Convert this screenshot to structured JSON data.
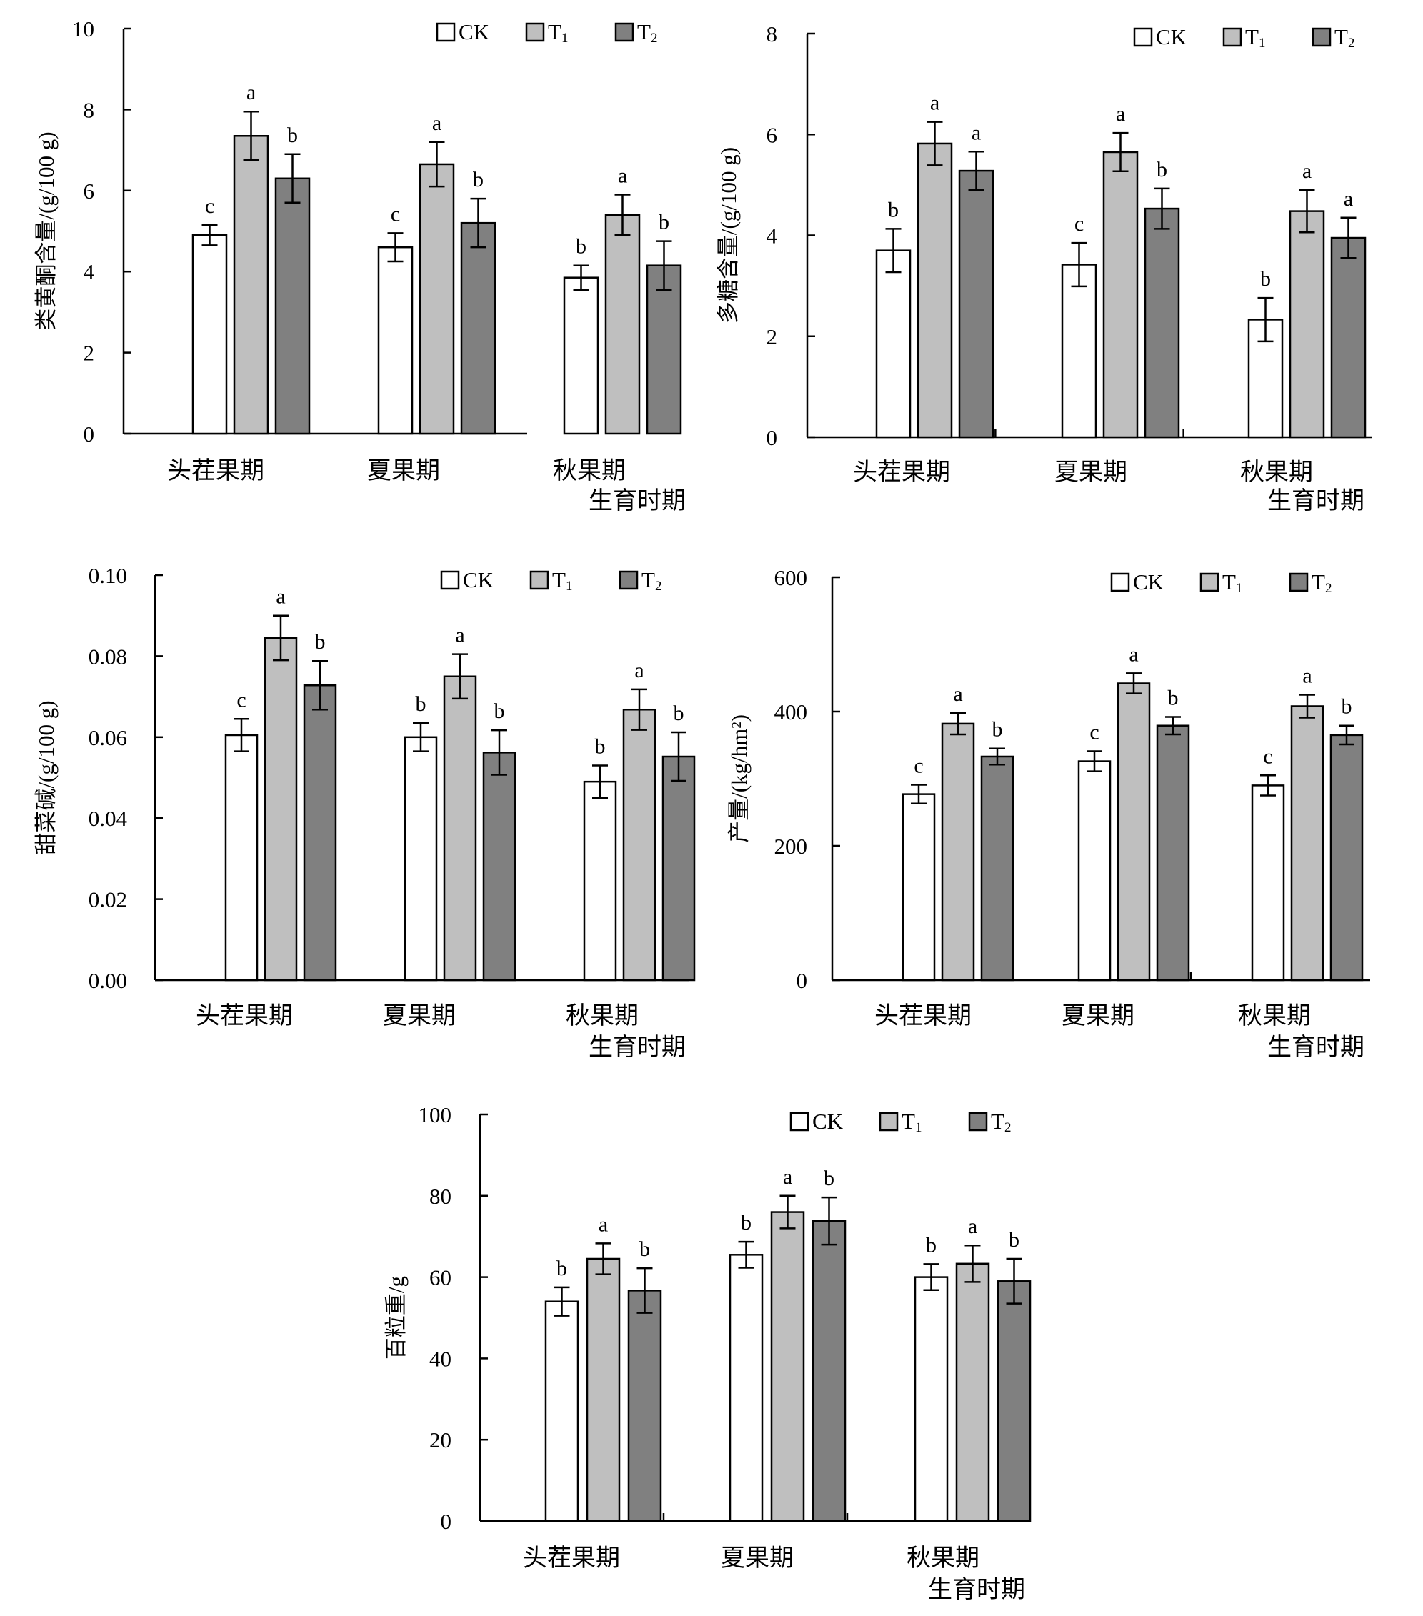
{
  "legend": [
    {
      "key": "CK",
      "label": "CK",
      "sub": "",
      "color": "#ffffff"
    },
    {
      "key": "T1",
      "label": "T",
      "sub": "1",
      "color": "#bfbfbf"
    },
    {
      "key": "T2",
      "label": "T",
      "sub": "2",
      "color": "#808080"
    }
  ],
  "chart_data": [
    {
      "type": "bar",
      "title": "",
      "ylabel": "类黄酮含量/(g/100 g)",
      "xlabel": "生育时期",
      "ylim": [
        0,
        10
      ],
      "yticks": [
        "0",
        "2",
        "4",
        "6",
        "8",
        "10"
      ],
      "categories": [
        "头茬果期",
        "夏果期",
        "秋果期"
      ],
      "legend_position": "top-right",
      "series": [
        {
          "name": "CK",
          "values": [
            4.9,
            4.6,
            3.85
          ],
          "errors": [
            0.25,
            0.35,
            0.3
          ],
          "letters": [
            "c",
            "c",
            "b"
          ]
        },
        {
          "name": "T1",
          "values": [
            7.35,
            6.65,
            5.4
          ],
          "errors": [
            0.6,
            0.55,
            0.5
          ],
          "letters": [
            "a",
            "a",
            "a"
          ]
        },
        {
          "name": "T2",
          "values": [
            6.3,
            5.2,
            4.15
          ],
          "errors": [
            0.6,
            0.6,
            0.6
          ],
          "letters": [
            "b",
            "b",
            "b"
          ]
        }
      ]
    },
    {
      "type": "bar",
      "title": "",
      "ylabel": "多糖含量/(g/100 g)",
      "xlabel": "生育时期",
      "ylim": [
        0,
        8
      ],
      "yticks": [
        "0",
        "2",
        "4",
        "6",
        "8"
      ],
      "categories": [
        "头茬果期",
        "夏果期",
        "秋果期"
      ],
      "legend_position": "top-right",
      "series": [
        {
          "name": "CK",
          "values": [
            3.7,
            3.42,
            2.33
          ],
          "errors": [
            0.43,
            0.43,
            0.43
          ],
          "letters": [
            "b",
            "c",
            "b"
          ]
        },
        {
          "name": "T1",
          "values": [
            5.82,
            5.65,
            4.48
          ],
          "errors": [
            0.43,
            0.38,
            0.42
          ],
          "letters": [
            "a",
            "a",
            "a"
          ]
        },
        {
          "name": "T2",
          "values": [
            5.28,
            4.53,
            3.95
          ],
          "errors": [
            0.38,
            0.4,
            0.4
          ],
          "letters": [
            "a",
            "b",
            "a"
          ]
        }
      ]
    },
    {
      "type": "bar",
      "title": "",
      "ylabel": "甜菜碱/(g/100 g)",
      "xlabel": "生育时期",
      "ylim": [
        0,
        0.1
      ],
      "yticks": [
        "0.00",
        "0.02",
        "0.04",
        "0.06",
        "0.08",
        "0.10"
      ],
      "categories": [
        "头茬果期",
        "夏果期",
        "秋果期"
      ],
      "legend_position": "top-right",
      "series": [
        {
          "name": "CK",
          "values": [
            0.0605,
            0.06,
            0.049
          ],
          "errors": [
            0.004,
            0.0035,
            0.004
          ],
          "letters": [
            "c",
            "b",
            "b"
          ]
        },
        {
          "name": "T1",
          "values": [
            0.0845,
            0.075,
            0.0668
          ],
          "errors": [
            0.0055,
            0.0055,
            0.005
          ],
          "letters": [
            "a",
            "a",
            "a"
          ]
        },
        {
          "name": "T2",
          "values": [
            0.0728,
            0.0562,
            0.0552
          ],
          "errors": [
            0.006,
            0.0055,
            0.006
          ],
          "letters": [
            "b",
            "b",
            "b"
          ]
        }
      ]
    },
    {
      "type": "bar",
      "title": "",
      "ylabel": "产量/(kg/hm²)",
      "xlabel": "生育时期",
      "ylim": [
        0,
        600
      ],
      "yticks": [
        "0",
        "200",
        "400",
        "600"
      ],
      "categories": [
        "头茬果期",
        "夏果期",
        "秋果期"
      ],
      "legend_position": "top-right",
      "series": [
        {
          "name": "CK",
          "values": [
            277,
            326,
            290
          ],
          "errors": [
            14,
            15,
            15
          ],
          "letters": [
            "c",
            "c",
            "c"
          ]
        },
        {
          "name": "T1",
          "values": [
            382,
            442,
            408
          ],
          "errors": [
            16,
            15,
            17
          ],
          "letters": [
            "a",
            "a",
            "a"
          ]
        },
        {
          "name": "T2",
          "values": [
            333,
            379,
            365
          ],
          "errors": [
            12,
            13,
            14
          ],
          "letters": [
            "b",
            "b",
            "b"
          ]
        }
      ]
    },
    {
      "type": "bar",
      "title": "",
      "ylabel": "百粒重/g",
      "xlabel": "生育时期",
      "ylim": [
        0,
        100
      ],
      "yticks": [
        "0",
        "20",
        "40",
        "60",
        "80",
        "100"
      ],
      "categories": [
        "头茬果期",
        "夏果期",
        "秋果期"
      ],
      "legend_position": "top-right",
      "series": [
        {
          "name": "CK",
          "values": [
            54,
            65.5,
            60
          ],
          "errors": [
            3.5,
            3.2,
            3.2
          ],
          "letters": [
            "b",
            "b",
            "b"
          ]
        },
        {
          "name": "T1",
          "values": [
            64.5,
            76,
            63.3
          ],
          "errors": [
            3.8,
            4,
            4.5
          ],
          "letters": [
            "a",
            "a",
            "a"
          ]
        },
        {
          "name": "T2",
          "values": [
            56.7,
            73.8,
            59
          ],
          "errors": [
            5.5,
            5.8,
            5.5
          ],
          "letters": [
            "b",
            "b",
            "b"
          ]
        }
      ]
    }
  ]
}
